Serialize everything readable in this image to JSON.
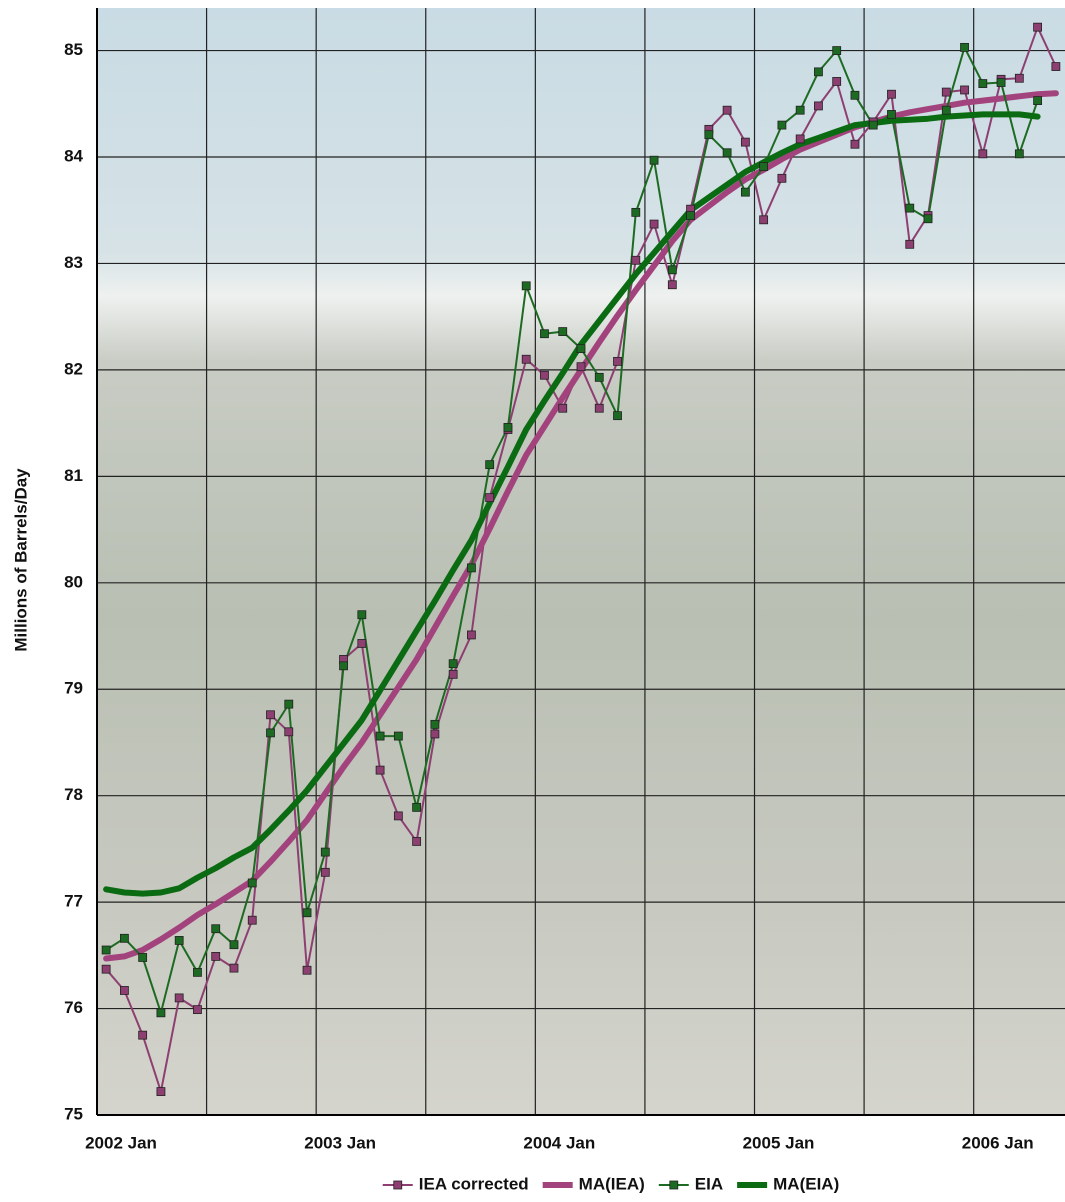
{
  "chart_data": {
    "type": "line",
    "y_label": "Millions of Barrels/Day",
    "x": [
      "2002-01",
      "2002-02",
      "2002-03",
      "2002-04",
      "2002-05",
      "2002-06",
      "2002-07",
      "2002-08",
      "2002-09",
      "2002-10",
      "2002-11",
      "2002-12",
      "2003-01",
      "2003-02",
      "2003-03",
      "2003-04",
      "2003-05",
      "2003-06",
      "2003-07",
      "2003-08",
      "2003-09",
      "2003-10",
      "2003-11",
      "2003-12",
      "2004-01",
      "2004-02",
      "2004-03",
      "2004-04",
      "2004-05",
      "2004-06",
      "2004-07",
      "2004-08",
      "2004-09",
      "2004-10",
      "2004-11",
      "2004-12",
      "2005-01",
      "2005-02",
      "2005-03",
      "2005-04",
      "2005-05",
      "2005-06",
      "2005-07",
      "2005-08",
      "2005-09",
      "2005-10",
      "2005-11",
      "2005-12",
      "2006-01",
      "2006-02",
      "2006-03",
      "2006-04",
      "2006-05"
    ],
    "xlim": [
      "2002-01",
      "2006-05"
    ],
    "xticks": [
      {
        "value": "2002-01",
        "label": "2002 Jan"
      },
      {
        "value": "2003-01",
        "label": "2003 Jan"
      },
      {
        "value": "2004-01",
        "label": "2004 Jan"
      },
      {
        "value": "2005-01",
        "label": "2005 Jan"
      },
      {
        "value": "2006-01",
        "label": "2006 Jan"
      }
    ],
    "x_minor_grid": [
      "2002-07",
      "2003-07",
      "2004-07",
      "2005-07"
    ],
    "ylim": [
      75,
      85.4
    ],
    "yticks": [
      75,
      76,
      77,
      78,
      79,
      80,
      81,
      82,
      83,
      84,
      85
    ],
    "grid": true,
    "legend": "bottom",
    "series": [
      {
        "name": "IEA corrected",
        "color": "#8e3f72",
        "marker": "square",
        "width": 2,
        "values": [
          76.37,
          76.17,
          75.75,
          75.22,
          76.1,
          75.99,
          76.49,
          76.38,
          76.83,
          78.76,
          78.6,
          76.36,
          77.28,
          79.28,
          79.43,
          78.24,
          77.81,
          77.57,
          78.58,
          79.14,
          79.51,
          80.8,
          81.44,
          82.1,
          81.95,
          81.64,
          82.03,
          81.64,
          82.08,
          83.03,
          83.37,
          82.8,
          83.51,
          84.26,
          84.44,
          84.14,
          83.41,
          83.8,
          84.17,
          84.48,
          84.71,
          84.12,
          84.33,
          84.59,
          83.18,
          83.45,
          84.61,
          84.63,
          84.03,
          84.73,
          84.74,
          85.22,
          84.85
        ]
      },
      {
        "name": "MA(IEA)",
        "color": "#a3437d",
        "marker": "none",
        "width": 6,
        "values": [
          76.47,
          76.49,
          76.55,
          76.65,
          76.76,
          76.88,
          76.98,
          77.09,
          77.2,
          77.38,
          77.57,
          77.77,
          78.02,
          78.27,
          78.5,
          78.76,
          79.02,
          79.28,
          79.58,
          79.88,
          80.17,
          80.51,
          80.86,
          81.2,
          81.47,
          81.74,
          82.0,
          82.26,
          82.51,
          82.75,
          82.98,
          83.21,
          83.41,
          83.54,
          83.67,
          83.79,
          83.88,
          83.98,
          84.07,
          84.14,
          84.21,
          84.28,
          84.33,
          84.38,
          84.42,
          84.45,
          84.48,
          84.51,
          84.53,
          84.55,
          84.57,
          84.59,
          84.6
        ]
      },
      {
        "name": "EIA",
        "color": "#1d6b22",
        "marker": "square",
        "width": 2,
        "values": [
          76.55,
          76.66,
          76.48,
          75.96,
          76.64,
          76.34,
          76.75,
          76.6,
          77.18,
          78.59,
          78.86,
          76.9,
          77.47,
          79.22,
          79.7,
          78.56,
          78.56,
          77.89,
          78.67,
          79.24,
          80.14,
          81.11,
          81.46,
          82.79,
          82.34,
          82.36,
          82.2,
          81.93,
          81.57,
          83.48,
          83.97,
          82.94,
          83.45,
          84.21,
          84.04,
          83.67,
          83.91,
          84.3,
          84.44,
          84.8,
          85.0,
          84.58,
          84.3,
          84.4,
          83.52,
          83.42,
          84.44,
          85.03,
          84.69,
          84.7,
          84.03,
          84.53,
          null
        ]
      },
      {
        "name": "MA(EIA)",
        "color": "#0b6b12",
        "marker": "none",
        "width": 6,
        "values": [
          77.12,
          77.09,
          77.08,
          77.09,
          77.13,
          77.23,
          77.32,
          77.42,
          77.51,
          77.68,
          77.86,
          78.05,
          78.27,
          78.49,
          78.71,
          78.99,
          79.27,
          79.55,
          79.83,
          80.12,
          80.4,
          80.75,
          81.09,
          81.44,
          81.71,
          81.97,
          82.24,
          82.46,
          82.68,
          82.9,
          83.1,
          83.3,
          83.5,
          83.62,
          83.74,
          83.86,
          83.95,
          84.04,
          84.12,
          84.18,
          84.24,
          84.3,
          84.32,
          84.34,
          84.35,
          84.36,
          84.38,
          84.39,
          84.4,
          84.4,
          84.4,
          84.38,
          null
        ]
      }
    ]
  }
}
